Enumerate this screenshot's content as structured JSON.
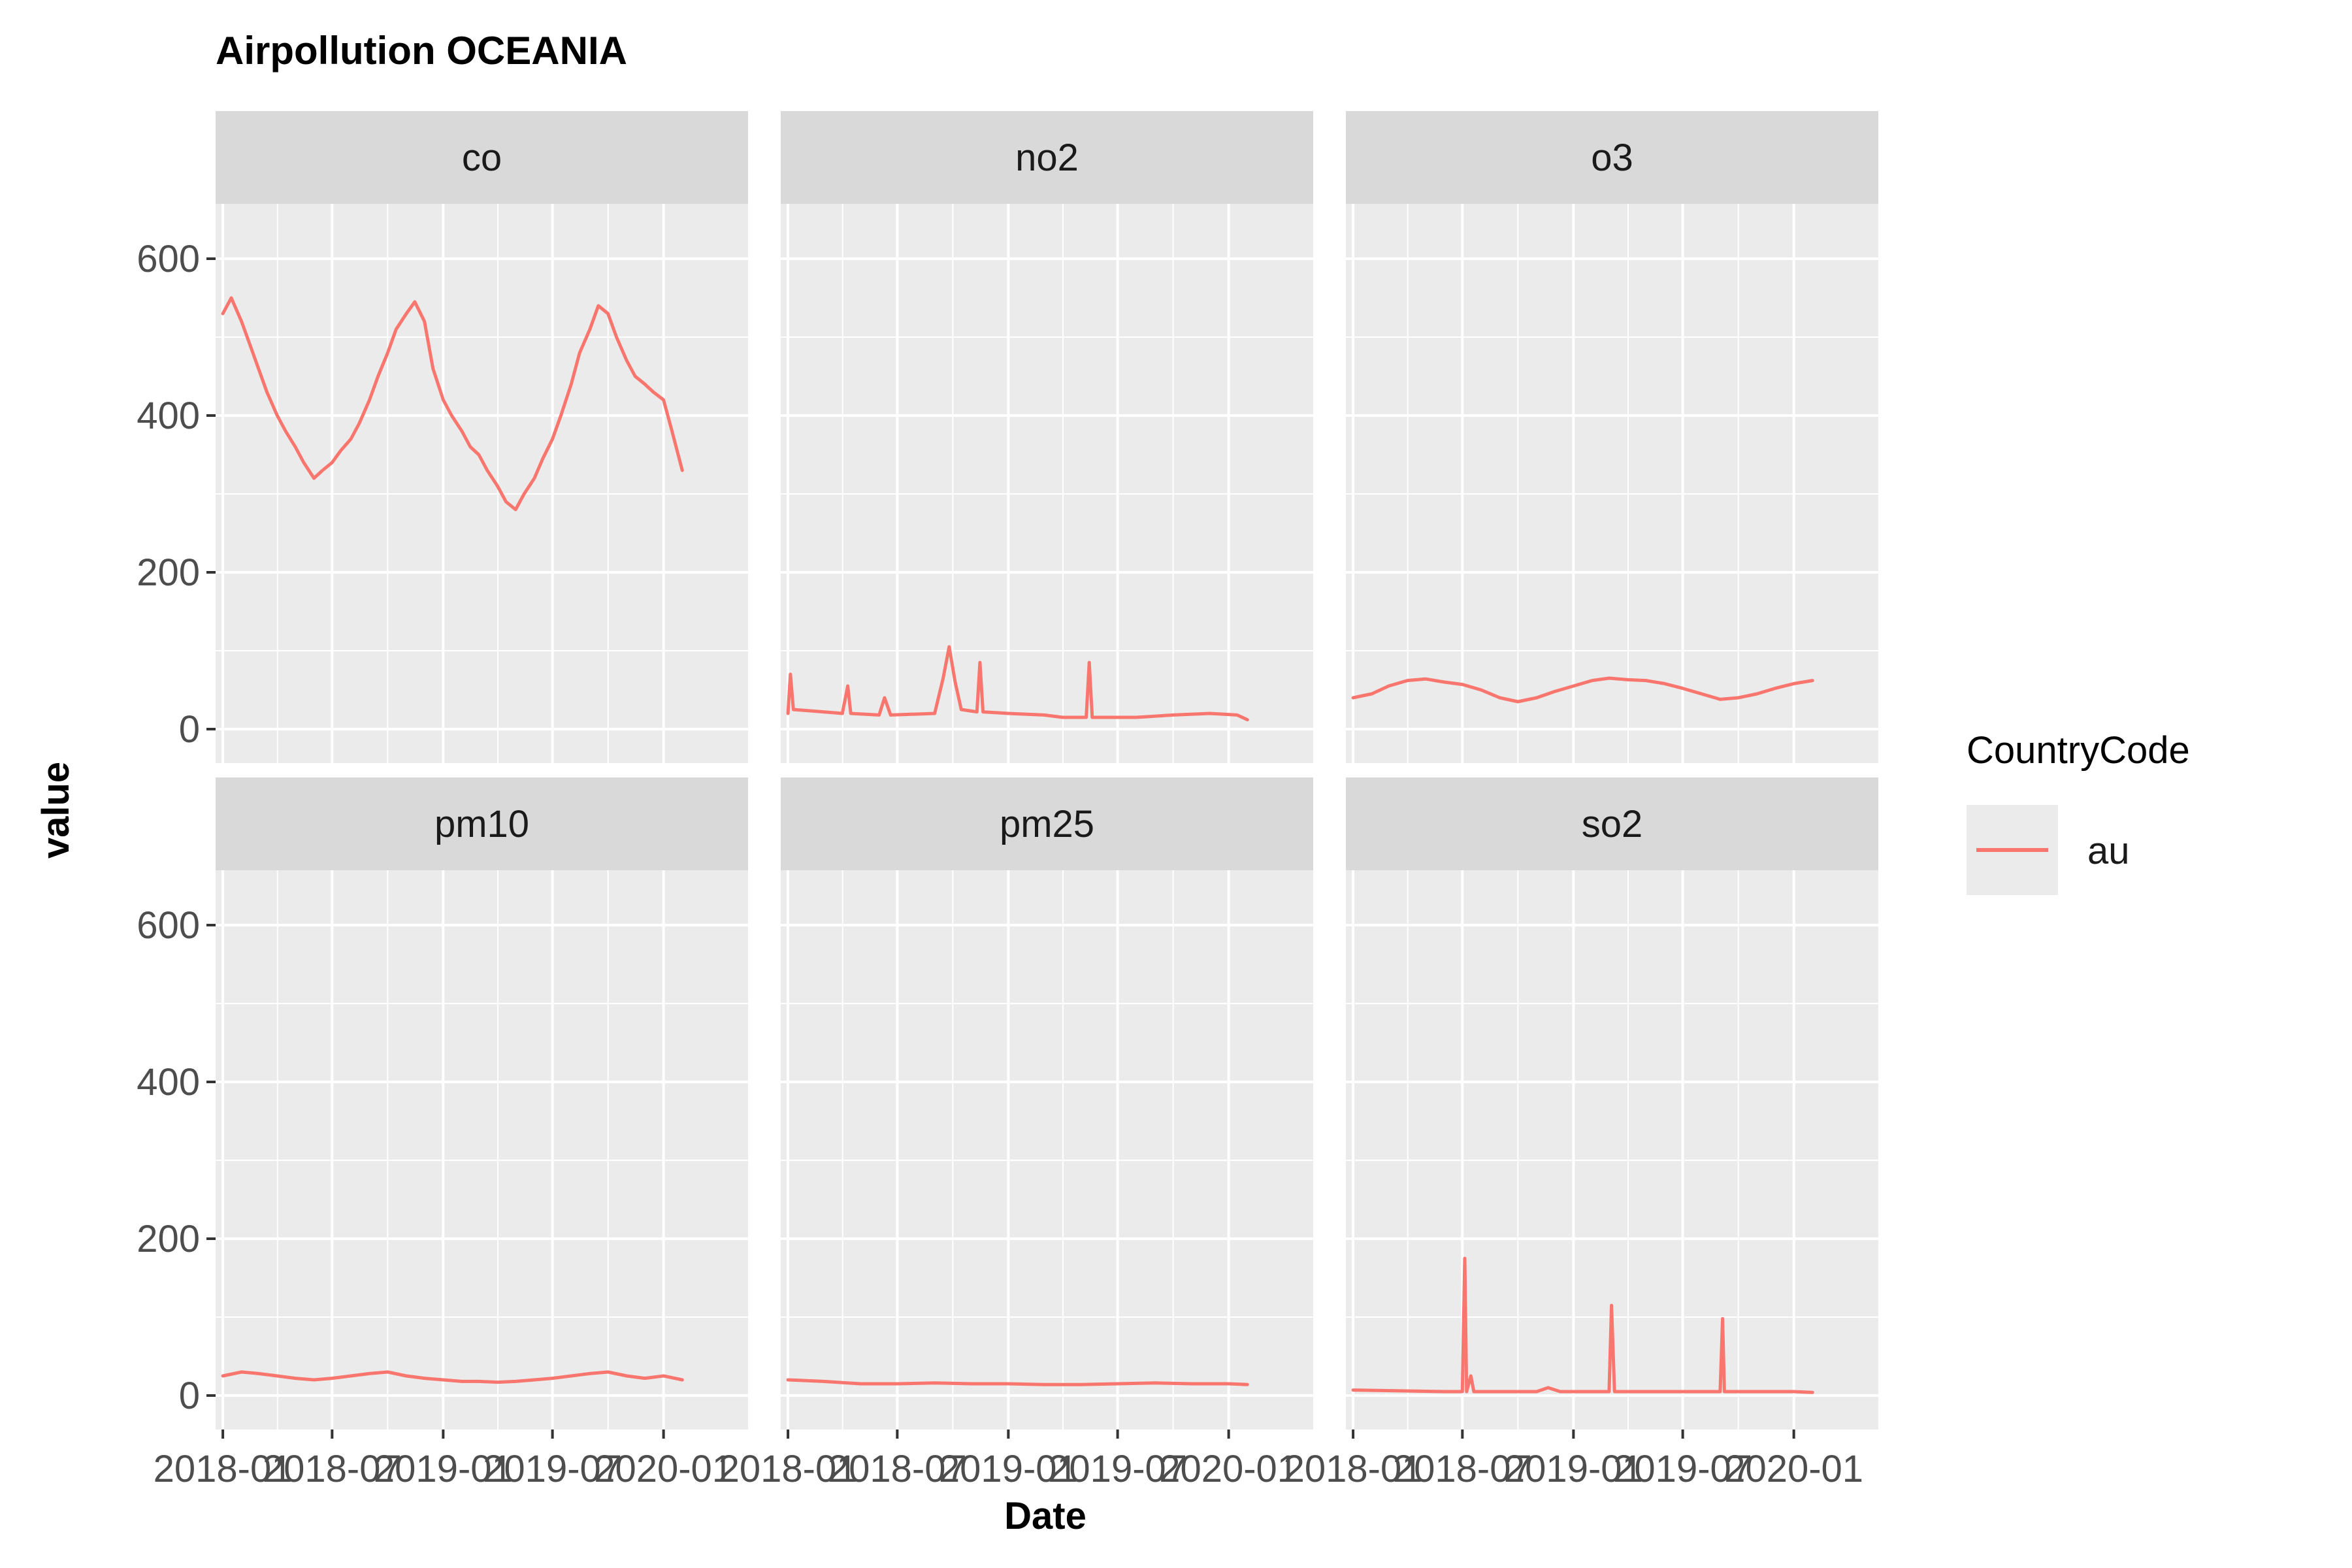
{
  "chart_data": {
    "type": "line",
    "title": "Airpollution OCEANIA",
    "xlabel": "Date",
    "ylabel": "value",
    "facet_labels": [
      "co",
      "no2",
      "o3",
      "pm10",
      "pm25",
      "so2"
    ],
    "y_ticks": [
      0,
      200,
      400,
      600
    ],
    "x_tick_labels": [
      "2018-01",
      "2018-07",
      "2019-01",
      "2019-07",
      "2020-01"
    ],
    "ylim": [
      -20,
      670
    ],
    "xlim": [
      "2017-12-20",
      "2020-05-20"
    ],
    "grid": true,
    "legend": {
      "title": "CountryCode",
      "entries": [
        "au"
      ],
      "position": "right"
    },
    "series": [
      {
        "name": "au",
        "color": "#F8766D",
        "facets": {
          "co": [
            [
              "2018-01-01",
              530
            ],
            [
              "2018-01-15",
              550
            ],
            [
              "2018-02-01",
              520
            ],
            [
              "2018-02-15",
              490
            ],
            [
              "2018-03-01",
              460
            ],
            [
              "2018-03-15",
              430
            ],
            [
              "2018-04-01",
              400
            ],
            [
              "2018-04-15",
              380
            ],
            [
              "2018-05-01",
              360
            ],
            [
              "2018-05-15",
              340
            ],
            [
              "2018-06-01",
              320
            ],
            [
              "2018-06-15",
              330
            ],
            [
              "2018-07-01",
              340
            ],
            [
              "2018-07-15",
              355
            ],
            [
              "2018-08-01",
              370
            ],
            [
              "2018-08-15",
              390
            ],
            [
              "2018-09-01",
              420
            ],
            [
              "2018-09-15",
              450
            ],
            [
              "2018-10-01",
              480
            ],
            [
              "2018-10-15",
              510
            ],
            [
              "2018-11-01",
              530
            ],
            [
              "2018-11-15",
              545
            ],
            [
              "2018-12-01",
              520
            ],
            [
              "2018-12-15",
              460
            ],
            [
              "2019-01-01",
              420
            ],
            [
              "2019-01-15",
              400
            ],
            [
              "2019-02-01",
              380
            ],
            [
              "2019-02-15",
              360
            ],
            [
              "2019-03-01",
              350
            ],
            [
              "2019-03-15",
              330
            ],
            [
              "2019-04-01",
              310
            ],
            [
              "2019-04-15",
              290
            ],
            [
              "2019-05-01",
              280
            ],
            [
              "2019-05-15",
              300
            ],
            [
              "2019-06-01",
              320
            ],
            [
              "2019-06-15",
              345
            ],
            [
              "2019-07-01",
              370
            ],
            [
              "2019-07-15",
              400
            ],
            [
              "2019-08-01",
              440
            ],
            [
              "2019-08-15",
              480
            ],
            [
              "2019-09-01",
              510
            ],
            [
              "2019-09-15",
              540
            ],
            [
              "2019-10-01",
              530
            ],
            [
              "2019-10-15",
              500
            ],
            [
              "2019-11-01",
              470
            ],
            [
              "2019-11-15",
              450
            ],
            [
              "2019-12-01",
              440
            ],
            [
              "2019-12-15",
              430
            ],
            [
              "2020-01-01",
              420
            ],
            [
              "2020-01-15",
              380
            ],
            [
              "2020-02-01",
              330
            ]
          ],
          "no2": [
            [
              "2018-01-01",
              20
            ],
            [
              "2018-01-05",
              70
            ],
            [
              "2018-01-10",
              25
            ],
            [
              "2018-03-01",
              22
            ],
            [
              "2018-04-01",
              20
            ],
            [
              "2018-04-10",
              55
            ],
            [
              "2018-04-15",
              20
            ],
            [
              "2018-06-01",
              18
            ],
            [
              "2018-06-10",
              40
            ],
            [
              "2018-06-20",
              18
            ],
            [
              "2018-09-01",
              20
            ],
            [
              "2018-09-15",
              65
            ],
            [
              "2018-09-25",
              105
            ],
            [
              "2018-10-05",
              60
            ],
            [
              "2018-10-15",
              25
            ],
            [
              "2018-11-10",
              22
            ],
            [
              "2018-11-15",
              85
            ],
            [
              "2018-11-20",
              22
            ],
            [
              "2019-01-01",
              20
            ],
            [
              "2019-03-01",
              18
            ],
            [
              "2019-04-01",
              15
            ],
            [
              "2019-05-10",
              15
            ],
            [
              "2019-05-15",
              85
            ],
            [
              "2019-05-20",
              15
            ],
            [
              "2019-08-01",
              15
            ],
            [
              "2019-10-01",
              18
            ],
            [
              "2019-12-01",
              20
            ],
            [
              "2020-01-15",
              18
            ],
            [
              "2020-02-01",
              12
            ]
          ],
          "o3": [
            [
              "2018-01-01",
              40
            ],
            [
              "2018-02-01",
              45
            ],
            [
              "2018-03-01",
              55
            ],
            [
              "2018-04-01",
              62
            ],
            [
              "2018-05-01",
              64
            ],
            [
              "2018-06-01",
              60
            ],
            [
              "2018-07-01",
              57
            ],
            [
              "2018-08-01",
              50
            ],
            [
              "2018-09-01",
              40
            ],
            [
              "2018-10-01",
              35
            ],
            [
              "2018-11-01",
              40
            ],
            [
              "2018-12-01",
              48
            ],
            [
              "2019-01-01",
              55
            ],
            [
              "2019-02-01",
              62
            ],
            [
              "2019-03-01",
              65
            ],
            [
              "2019-04-01",
              63
            ],
            [
              "2019-05-01",
              62
            ],
            [
              "2019-06-01",
              58
            ],
            [
              "2019-07-01",
              52
            ],
            [
              "2019-08-01",
              45
            ],
            [
              "2019-09-01",
              38
            ],
            [
              "2019-10-01",
              40
            ],
            [
              "2019-11-01",
              45
            ],
            [
              "2019-12-01",
              52
            ],
            [
              "2020-01-01",
              58
            ],
            [
              "2020-02-01",
              62
            ]
          ],
          "pm10": [
            [
              "2018-01-01",
              25
            ],
            [
              "2018-02-01",
              30
            ],
            [
              "2018-03-01",
              28
            ],
            [
              "2018-04-01",
              25
            ],
            [
              "2018-05-01",
              22
            ],
            [
              "2018-06-01",
              20
            ],
            [
              "2018-07-01",
              22
            ],
            [
              "2018-08-01",
              25
            ],
            [
              "2018-09-01",
              28
            ],
            [
              "2018-10-01",
              30
            ],
            [
              "2018-11-01",
              25
            ],
            [
              "2018-12-01",
              22
            ],
            [
              "2019-01-01",
              20
            ],
            [
              "2019-02-01",
              18
            ],
            [
              "2019-03-01",
              18
            ],
            [
              "2019-04-01",
              17
            ],
            [
              "2019-05-01",
              18
            ],
            [
              "2019-06-01",
              20
            ],
            [
              "2019-07-01",
              22
            ],
            [
              "2019-08-01",
              25
            ],
            [
              "2019-09-01",
              28
            ],
            [
              "2019-10-01",
              30
            ],
            [
              "2019-11-01",
              25
            ],
            [
              "2019-12-01",
              22
            ],
            [
              "2020-01-01",
              25
            ],
            [
              "2020-02-01",
              20
            ]
          ],
          "pm25": [
            [
              "2018-01-01",
              20
            ],
            [
              "2018-03-01",
              18
            ],
            [
              "2018-05-01",
              15
            ],
            [
              "2018-07-01",
              15
            ],
            [
              "2018-09-01",
              16
            ],
            [
              "2018-11-01",
              15
            ],
            [
              "2019-01-01",
              15
            ],
            [
              "2019-03-01",
              14
            ],
            [
              "2019-05-01",
              14
            ],
            [
              "2019-07-01",
              15
            ],
            [
              "2019-09-01",
              16
            ],
            [
              "2019-11-01",
              15
            ],
            [
              "2020-01-01",
              15
            ],
            [
              "2020-02-01",
              14
            ]
          ],
          "so2": [
            [
              "2018-01-01",
              7
            ],
            [
              "2018-06-01",
              5
            ],
            [
              "2018-07-01",
              5
            ],
            [
              "2018-07-05",
              175
            ],
            [
              "2018-07-08",
              5
            ],
            [
              "2018-07-15",
              25
            ],
            [
              "2018-07-20",
              5
            ],
            [
              "2018-11-01",
              5
            ],
            [
              "2018-11-20",
              10
            ],
            [
              "2018-12-10",
              5
            ],
            [
              "2019-03-01",
              5
            ],
            [
              "2019-03-05",
              115
            ],
            [
              "2019-03-10",
              5
            ],
            [
              "2019-09-01",
              5
            ],
            [
              "2019-09-05",
              98
            ],
            [
              "2019-09-08",
              5
            ],
            [
              "2020-01-01",
              5
            ],
            [
              "2020-02-01",
              4
            ]
          ]
        }
      }
    ]
  }
}
